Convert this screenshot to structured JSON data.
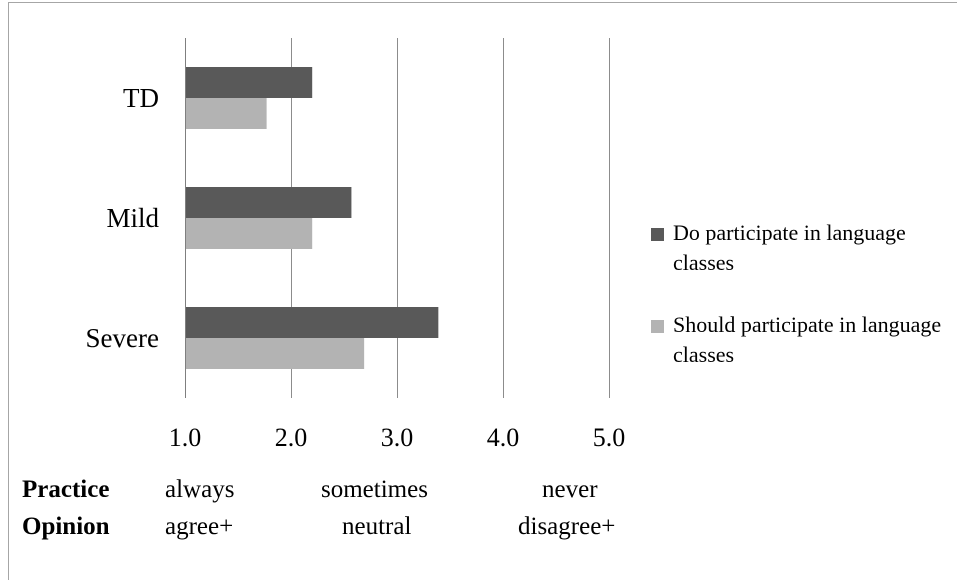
{
  "chart_data": {
    "type": "bar",
    "orientation": "horizontal",
    "categories": [
      "TD",
      "Mild",
      "Severe"
    ],
    "series": [
      {
        "name": "Do participate in language classes",
        "values": [
          2.2,
          2.57,
          3.39
        ],
        "color": "#595959"
      },
      {
        "name": "Should participate in language classes",
        "values": [
          1.77,
          2.2,
          2.69
        ],
        "color": "#b3b3b3"
      }
    ],
    "xlim": [
      1.0,
      5.0
    ],
    "xticks": [
      "1.0",
      "2.0",
      "3.0",
      "4.0",
      "5.0"
    ],
    "grid": true,
    "legend_position": "right"
  },
  "scale": {
    "practice": {
      "label": "Practice",
      "low": "always",
      "mid": "sometimes",
      "high": "never"
    },
    "opinion": {
      "label": "Opinion",
      "low": "agree+",
      "mid": "neutral",
      "high": "disagree+"
    }
  }
}
